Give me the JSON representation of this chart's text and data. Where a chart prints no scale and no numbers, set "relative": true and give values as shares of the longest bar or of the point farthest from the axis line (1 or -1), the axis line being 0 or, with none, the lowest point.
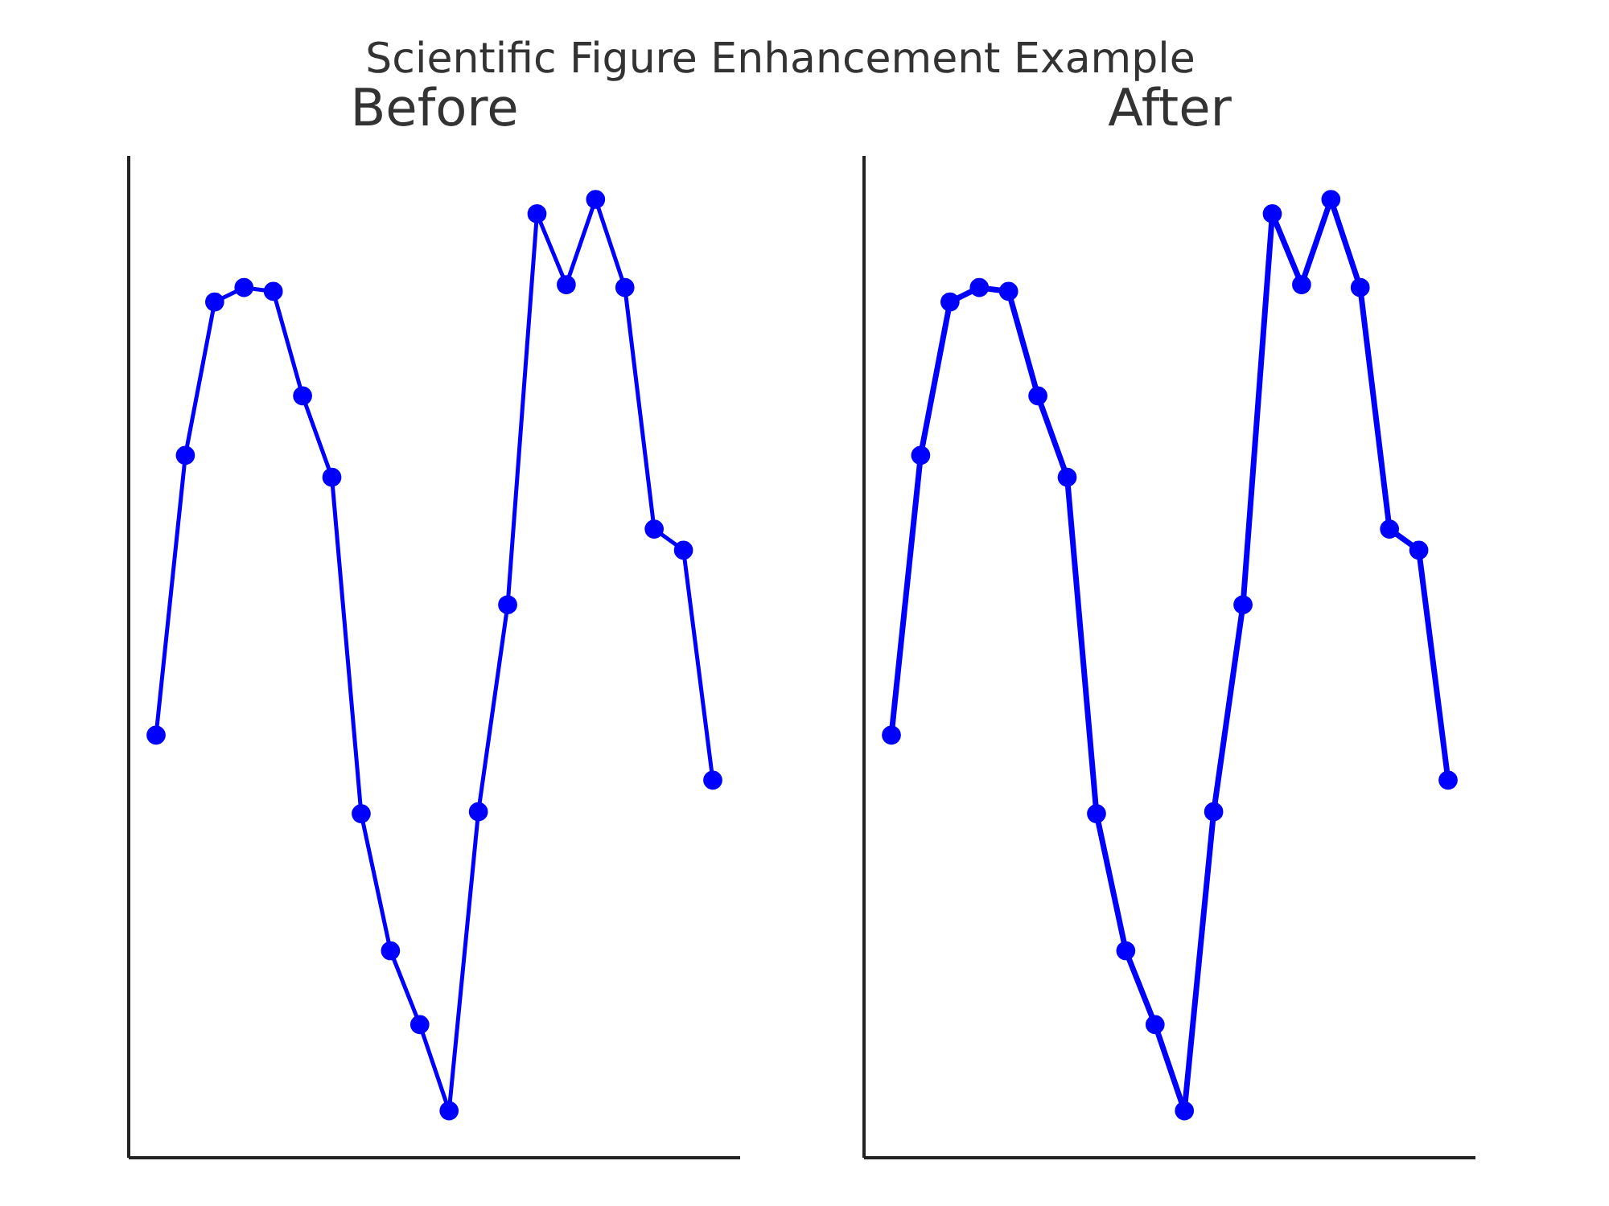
{
  "chart_data": [
    {
      "type": "other",
      "title": "Scientific Figure Enhancement Example"
    },
    {
      "type": "line",
      "title": "Before",
      "categories": [
        null,
        null,
        null,
        null,
        null,
        null,
        null,
        null,
        null,
        null,
        null,
        null,
        null,
        null,
        null,
        null,
        null,
        null,
        null,
        null
      ],
      "relative": true,
      "marker": "circle",
      "series": [
        {
          "color": "#0000ff",
          "values": [
            0.441,
            0.733,
            0.893,
            0.908,
            0.904,
            0.795,
            0.71,
            0.359,
            0.216,
            0.139,
            0.049,
            0.361,
            0.577,
            0.985,
            0.911,
            1,
            0.908,
            0.656,
            0.634,
            0.394
          ]
        }
      ]
    },
    {
      "type": "line",
      "title": "After",
      "categories": [
        null,
        null,
        null,
        null,
        null,
        null,
        null,
        null,
        null,
        null,
        null,
        null,
        null,
        null,
        null,
        null,
        null,
        null,
        null,
        null
      ],
      "relative": true,
      "marker": "circle",
      "series": [
        {
          "color": "#0000ff",
          "values": [
            0.441,
            0.733,
            0.893,
            0.908,
            0.904,
            0.795,
            0.71,
            0.359,
            0.216,
            0.139,
            0.049,
            0.361,
            0.577,
            0.985,
            0.911,
            1,
            0.908,
            0.656,
            0.634,
            0.394
          ]
        }
      ]
    }
  ]
}
